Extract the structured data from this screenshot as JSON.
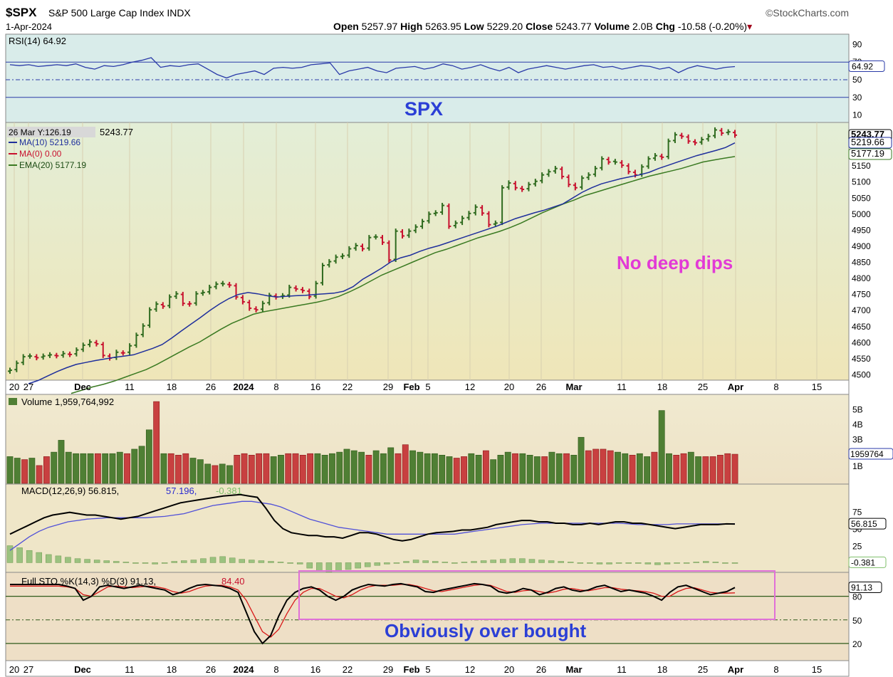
{
  "header": {
    "symbol": "$SPX",
    "name": "S&P 500 Large Cap Index",
    "exchange": "INDX",
    "brand": "©StockCharts.com",
    "date": "1-Apr-2024",
    "open_label": "Open",
    "open": "5257.97",
    "high_label": "High",
    "high": "5263.95",
    "low_label": "Low",
    "low": "5229.20",
    "close_label": "Close",
    "close": "5243.77",
    "volume_label": "Volume",
    "volume": "2.0B",
    "chg_label": "Chg",
    "chg": "-10.58 (-0.20%)"
  },
  "annotations": {
    "title": "SPX",
    "note1": "No deep dips",
    "note2": "Obviously over bought"
  },
  "colors": {
    "up": "#2f6b1f",
    "down": "#c8102e",
    "ma10": "#1f2f9c",
    "ema20": "#3a7a22",
    "rsi_bg": "#d9ecea",
    "price_bg_top": "#e3eed7",
    "price_bg_bottom": "#efe6b8",
    "lower_bg": "#efe6c8",
    "annotation_blue": "#2b3fd6",
    "annotation_pink": "#e23ad6"
  },
  "chart_data": {
    "type": "line",
    "x_ticks": [
      "20",
      "27",
      "Dec",
      "11",
      "18",
      "26",
      "2024",
      "8",
      "16",
      "22",
      "29",
      "Feb",
      "5",
      "12",
      "20",
      "26",
      "Mar",
      "11",
      "18",
      "25",
      "Apr",
      "8",
      "15"
    ],
    "rsi": {
      "label": "RSI(14) 64.92",
      "value": 64.92,
      "ticks": [
        90,
        70,
        50,
        30,
        10
      ],
      "last_label": "64.92",
      "series": [
        67,
        66,
        67,
        65,
        66,
        67,
        66,
        68,
        64,
        62,
        66,
        65,
        67,
        70,
        72,
        75,
        64,
        66,
        65,
        67,
        68,
        62,
        56,
        52,
        56,
        58,
        60,
        56,
        63,
        64,
        63,
        64,
        67,
        68,
        69,
        56,
        60,
        62,
        64,
        60,
        58,
        63,
        64,
        65,
        62,
        64,
        68,
        66,
        62,
        64,
        67,
        63,
        60,
        64,
        58,
        62,
        64,
        66,
        64,
        62,
        64,
        66,
        67,
        64,
        65,
        62,
        64,
        66,
        65,
        62,
        64,
        58,
        63,
        66,
        64,
        62,
        64,
        64.9
      ]
    },
    "price": {
      "label_hover": "26 Mar Y:126.19",
      "last": "5243.77",
      "legend": [
        {
          "name": "MA(10) 5219.66",
          "color": "#1f2f9c"
        },
        {
          "name": "MA(0) 0.00",
          "color": "#c8102e"
        },
        {
          "name": "EMA(20) 5177.19",
          "color": "#3a7a22"
        }
      ],
      "ticks": [
        5250,
        5200,
        5150,
        5100,
        5050,
        5000,
        4950,
        4900,
        4850,
        4800,
        4750,
        4700,
        4650,
        4600,
        4550,
        4500
      ],
      "last_labels": [
        "5243.77",
        "5219.66",
        "5177.19"
      ],
      "close": [
        4512,
        4534,
        4554,
        4556,
        4551,
        4556,
        4560,
        4557,
        4564,
        4561,
        4575,
        4590,
        4600,
        4594,
        4558,
        4550,
        4568,
        4566,
        4588,
        4621,
        4650,
        4700,
        4718,
        4711,
        4740,
        4750,
        4720,
        4719,
        4750,
        4754,
        4770,
        4780,
        4781,
        4777,
        4740,
        4725,
        4705,
        4700,
        4720,
        4745,
        4740,
        4744,
        4770,
        4765,
        4760,
        4741,
        4782,
        4838,
        4850,
        4864,
        4868,
        4890,
        4900,
        4890,
        4925,
        4927,
        4910,
        4855,
        4945,
        4930,
        4945,
        4958,
        4975,
        4998,
        5002,
        5025,
        4960,
        4970,
        4985,
        5000,
        5020,
        5001,
        4965,
        4970,
        5080,
        5095,
        5080,
        5075,
        5090,
        5100,
        5120,
        5130,
        5140,
        5115,
        5090,
        5080,
        5110,
        5120,
        5140,
        5170,
        5160,
        5160,
        5150,
        5130,
        5120,
        5145,
        5170,
        5180,
        5175,
        5225,
        5245,
        5240,
        5225,
        5220,
        5230,
        5240,
        5260,
        5250,
        5254,
        5243.77
      ],
      "ma10": [
        4470,
        4480,
        4494,
        4508,
        4520,
        4530,
        4536,
        4542,
        4547,
        4552,
        4556,
        4560,
        4570,
        4580,
        4592,
        4612,
        4634,
        4655,
        4676,
        4698,
        4718,
        4735,
        4748,
        4754,
        4750,
        4744,
        4740,
        4742,
        4744,
        4745,
        4748,
        4750,
        4752,
        4758,
        4772,
        4795,
        4812,
        4830,
        4850,
        4862,
        4870,
        4882,
        4892,
        4900,
        4910,
        4920,
        4930,
        4940,
        4950,
        4960,
        4972,
        4984,
        4993,
        5002,
        5010,
        5020,
        5030,
        5048,
        5066,
        5080,
        5092,
        5100,
        5108,
        5114,
        5120,
        5128,
        5140,
        5150,
        5160,
        5170,
        5180,
        5188,
        5196,
        5205,
        5219.66
      ],
      "ema20": [
        4440,
        4450,
        4460,
        4468,
        4478,
        4490,
        4502,
        4514,
        4530,
        4548,
        4566,
        4584,
        4600,
        4620,
        4640,
        4658,
        4672,
        4686,
        4694,
        4700,
        4706,
        4712,
        4718,
        4724,
        4732,
        4742,
        4756,
        4772,
        4790,
        4808,
        4822,
        4836,
        4850,
        4864,
        4878,
        4888,
        4900,
        4912,
        4924,
        4934,
        4944,
        4956,
        4970,
        4986,
        5002,
        5016,
        5030,
        5042,
        5056,
        5066,
        5076,
        5086,
        5096,
        5106,
        5116,
        5124,
        5132,
        5140,
        5150,
        5160,
        5166,
        5172,
        5177.19
      ]
    },
    "volume": {
      "label": "Volume 1,959,764,992",
      "ticks": [
        "5B",
        "4B",
        "3B",
        "1B"
      ],
      "last_label": "1959764",
      "values": [
        1.8,
        1.7,
        1.6,
        1.7,
        1.2,
        1.8,
        2.1,
        2.9,
        2.1,
        2.0,
        2.0,
        2.0,
        2.0,
        2.0,
        2.0,
        2.1,
        2.0,
        2.3,
        2.5,
        3.6,
        5.5,
        2.0,
        2.0,
        1.9,
        2.0,
        1.7,
        1.6,
        1.3,
        1.2,
        1.3,
        1.2,
        1.9,
        2.0,
        1.9,
        2.0,
        2.0,
        1.8,
        1.9,
        2.0,
        2.0,
        1.9,
        2.0,
        2.0,
        1.9,
        2.0,
        2.1,
        2.3,
        2.2,
        2.1,
        1.9,
        2.2,
        2.0,
        2.4,
        2.0,
        2.6,
        2.2,
        2.1,
        2.0,
        2.0,
        1.9,
        1.8,
        1.7,
        1.8,
        2.0,
        1.9,
        2.2,
        1.6,
        1.9,
        2.1,
        2.0,
        2.0,
        1.9,
        1.8,
        1.8,
        2.1,
        2.0,
        2.0,
        1.9,
        3.1,
        2.2,
        2.3,
        2.3,
        2.2,
        2.1,
        2.0,
        1.9,
        2.0,
        1.8,
        2.1,
        4.9,
        2.0,
        1.9,
        2.0,
        2.1,
        1.8,
        1.8,
        1.8,
        1.9,
        2.0,
        1.96
      ],
      "up": [
        1,
        1,
        0,
        1,
        0,
        0,
        1,
        1,
        1,
        1,
        1,
        1,
        0,
        1,
        1,
        1,
        0,
        1,
        1,
        1,
        0,
        1,
        0,
        0,
        0,
        1,
        1,
        1,
        0,
        1,
        1,
        0,
        0,
        0,
        0,
        0,
        1,
        1,
        0,
        0,
        0,
        0,
        1,
        1,
        1,
        1,
        1,
        1,
        1,
        0,
        1,
        1,
        1,
        0,
        0,
        1,
        1,
        1,
        1,
        1,
        1,
        0,
        0,
        1,
        1,
        0,
        1,
        1,
        1,
        0,
        1,
        1,
        1,
        0,
        1,
        1,
        0,
        1,
        1,
        0,
        0,
        0,
        0,
        1,
        1,
        0,
        1,
        1,
        0,
        1,
        1,
        0,
        0,
        1,
        1,
        0,
        0,
        0,
        0,
        0
      ]
    },
    "macd": {
      "label_main": "MACD(12,26,9) 56.815,",
      "label_signal": "57.196,",
      "label_hist": "-0.381",
      "ticks": [
        75,
        50,
        25
      ],
      "last_label": "56.815",
      "hist_last_label": "-0.381",
      "macd": [
        42,
        48,
        54,
        60,
        66,
        70,
        72,
        74,
        72,
        70,
        70,
        68,
        66,
        64,
        66,
        68,
        72,
        76,
        80,
        84,
        88,
        90,
        92,
        94,
        96,
        98,
        99,
        100,
        98,
        96,
        80,
        62,
        50,
        44,
        42,
        40,
        40,
        38,
        38,
        36,
        40,
        44,
        44,
        42,
        38,
        34,
        32,
        34,
        38,
        42,
        44,
        45,
        46,
        48,
        48,
        50,
        52,
        56,
        58,
        60,
        62,
        62,
        60,
        60,
        58,
        58,
        56,
        56,
        58,
        56,
        58,
        60,
        60,
        58,
        58,
        56,
        54,
        52,
        50,
        52,
        54,
        56,
        56,
        56,
        57,
        56.815
      ],
      "signal": [
        18,
        28,
        38,
        46,
        52,
        56,
        60,
        62,
        64,
        65,
        66,
        66,
        66,
        66,
        66,
        67,
        68,
        70,
        72,
        76,
        80,
        84,
        86,
        88,
        90,
        90,
        88,
        86,
        82,
        76,
        70,
        64,
        60,
        56,
        52,
        50,
        48,
        46,
        44,
        42,
        42,
        42,
        42,
        42,
        42,
        42,
        42,
        44,
        46,
        48,
        50,
        52,
        54,
        56,
        57,
        58,
        58,
        58,
        58,
        58,
        58,
        58,
        58,
        58,
        57,
        56,
        56,
        56,
        56,
        57,
        57,
        57,
        57,
        57,
        57,
        57.196
      ],
      "hist": [
        25,
        22,
        18,
        15,
        12,
        10,
        8,
        6,
        5,
        4,
        3,
        2,
        1,
        0,
        -1,
        -2,
        0,
        2,
        3,
        4,
        6,
        8,
        9,
        7,
        5,
        4,
        3,
        2,
        1,
        0,
        -2,
        -8,
        -12,
        -14,
        -12,
        -10,
        -8,
        -6,
        -4,
        -2,
        0,
        2,
        4,
        3,
        2,
        1,
        0,
        1,
        2,
        3,
        4,
        5,
        6,
        6,
        5,
        4,
        3,
        2,
        1,
        0,
        -1,
        -2,
        -2,
        -1,
        0,
        -1,
        -2,
        -3,
        -2,
        -1,
        0,
        1,
        2,
        1,
        0,
        -0.381
      ]
    },
    "stochastic": {
      "label_main": "Full STO %K(14,3) %D(3) 91.13,",
      "label_d": "84.40",
      "ticks": [
        80,
        50,
        20
      ],
      "last_label": "91.13",
      "k": [
        95,
        95,
        95,
        95,
        95,
        95,
        95,
        93,
        90,
        75,
        80,
        92,
        94,
        92,
        90,
        92,
        94,
        92,
        90,
        88,
        82,
        85,
        90,
        94,
        95,
        94,
        93,
        90,
        85,
        60,
        35,
        20,
        30,
        55,
        75,
        85,
        90,
        92,
        88,
        80,
        75,
        80,
        88,
        92,
        95,
        94,
        93,
        95,
        96,
        94,
        92,
        86,
        85,
        88,
        90,
        92,
        94,
        96,
        95,
        93,
        86,
        84,
        86,
        90,
        88,
        82,
        85,
        90,
        92,
        88,
        86,
        88,
        92,
        94,
        90,
        86,
        88,
        86,
        84,
        80,
        75,
        85,
        92,
        94,
        90,
        86,
        82,
        84,
        86,
        91.13
      ],
      "d": [
        93,
        93,
        93,
        93,
        93,
        93,
        93,
        92,
        90,
        82,
        80,
        86,
        92,
        93,
        92,
        91,
        92,
        93,
        92,
        90,
        86,
        84,
        86,
        90,
        93,
        94,
        94,
        92,
        88,
        75,
        55,
        35,
        28,
        38,
        58,
        75,
        85,
        90,
        90,
        85,
        80,
        78,
        82,
        88,
        92,
        94,
        94,
        94,
        95,
        95,
        93,
        90,
        87,
        86,
        88,
        90,
        92,
        94,
        95,
        94,
        90,
        86,
        85,
        87,
        88,
        86,
        84,
        86,
        89,
        90,
        88,
        87,
        89,
        91,
        91,
        89,
        88,
        87,
        86,
        84,
        80,
        80,
        86,
        90,
        91,
        88,
        85,
        84,
        84,
        84.4
      ]
    }
  }
}
